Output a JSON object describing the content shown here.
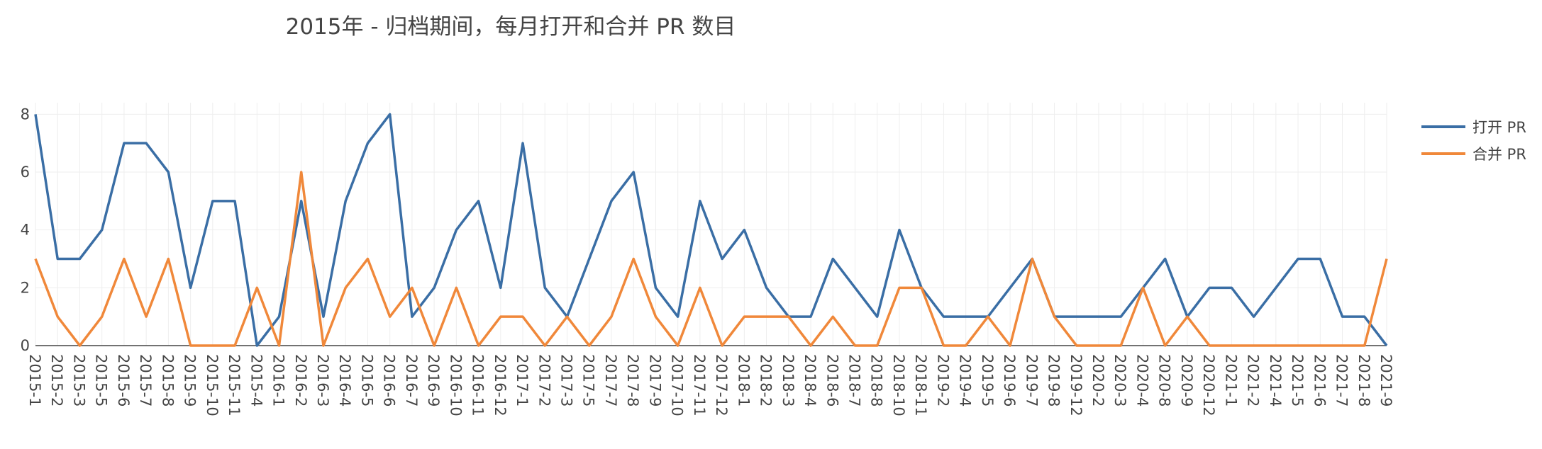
{
  "chart_data": {
    "type": "line",
    "title": "2015年 - 归档期间，每月打开和合并 PR 数目",
    "ylim": [
      0,
      8.4
    ],
    "y_ticks": [
      0,
      2,
      4,
      6,
      8
    ],
    "grid": true,
    "legend_position": "top-right",
    "categories": [
      "2015-1",
      "2015-2",
      "2015-3",
      "2015-5",
      "2015-6",
      "2015-7",
      "2015-8",
      "2015-9",
      "2015-10",
      "2015-11",
      "2015-4",
      "2016-1",
      "2016-2",
      "2016-3",
      "2016-4",
      "2016-5",
      "2016-6",
      "2016-7",
      "2016-9",
      "2016-10",
      "2016-11",
      "2016-12",
      "2017-1",
      "2017-2",
      "2017-3",
      "2017-5",
      "2017-7",
      "2017-8",
      "2017-9",
      "2017-10",
      "2017-11",
      "2017-12",
      "2018-1",
      "2018-2",
      "2018-3",
      "2018-4",
      "2018-6",
      "2018-7",
      "2018-8",
      "2018-10",
      "2018-11",
      "2019-2",
      "2019-4",
      "2019-5",
      "2019-6",
      "2019-7",
      "2019-8",
      "2019-12",
      "2020-2",
      "2020-3",
      "2020-4",
      "2020-8",
      "2020-9",
      "2020-12",
      "2021-1",
      "2021-2",
      "2021-4",
      "2021-5",
      "2021-6",
      "2021-7",
      "2021-8",
      "2021-9"
    ],
    "series": [
      {
        "name": "打开 PR",
        "color": "#3a6ea5",
        "values": [
          8,
          3,
          3,
          4,
          7,
          7,
          6,
          2,
          5,
          5,
          0,
          1,
          5,
          1,
          5,
          7,
          8,
          1,
          2,
          4,
          5,
          2,
          7,
          2,
          1,
          3,
          5,
          6,
          2,
          1,
          5,
          3,
          4,
          2,
          1,
          1,
          3,
          2,
          1,
          4,
          2,
          1,
          1,
          1,
          2,
          3,
          1,
          1,
          1,
          1,
          2,
          3,
          1,
          2,
          2,
          1,
          2,
          3,
          3,
          1,
          1,
          0
        ]
      },
      {
        "name": "合并 PR",
        "color": "#f0883a",
        "values": [
          3,
          1,
          0,
          1,
          3,
          1,
          3,
          0,
          0,
          0,
          2,
          0,
          6,
          0,
          2,
          3,
          1,
          2,
          0,
          2,
          0,
          1,
          1,
          0,
          1,
          0,
          1,
          3,
          1,
          0,
          2,
          0,
          1,
          1,
          1,
          0,
          1,
          0,
          0,
          2,
          2,
          0,
          0,
          1,
          0,
          3,
          1,
          0,
          0,
          0,
          2,
          0,
          1,
          0,
          0,
          0,
          0,
          0,
          0,
          0,
          0,
          3
        ]
      }
    ]
  }
}
